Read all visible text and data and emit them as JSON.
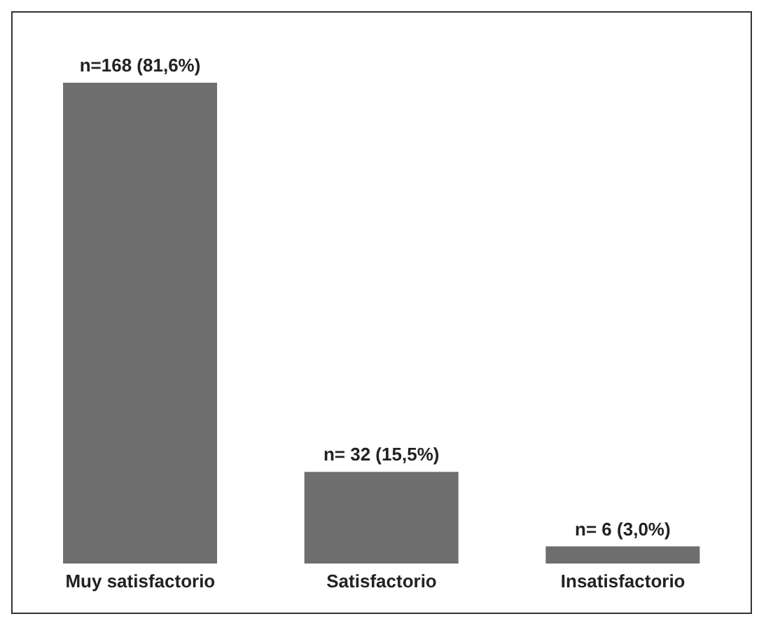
{
  "chart_data": {
    "type": "bar",
    "categories": [
      "Muy satisfactorio",
      "Satisfactorio",
      "Insatisfactorio"
    ],
    "values": [
      168,
      32,
      6
    ],
    "value_labels": [
      "n=168 (81,6%)",
      "n= 32 (15,5%)",
      "n= 6 (3,0%)"
    ],
    "color": "#6e6e6e"
  }
}
